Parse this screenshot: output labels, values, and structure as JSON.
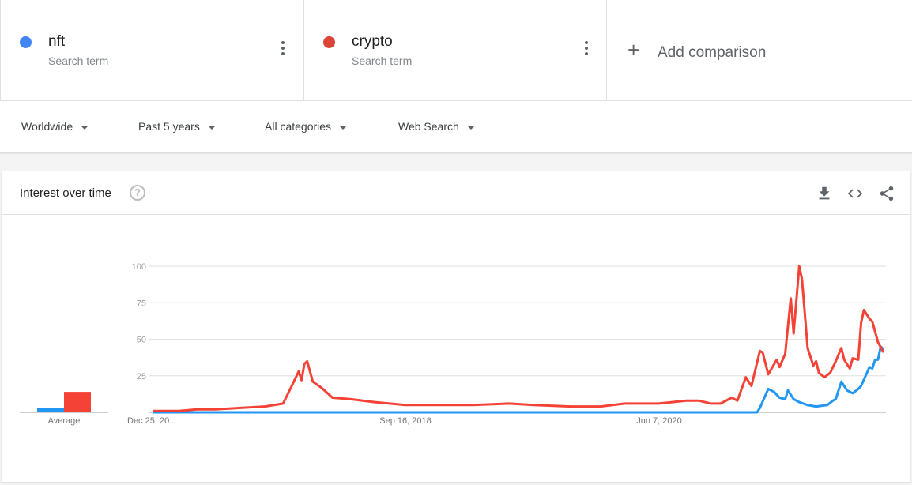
{
  "terms": [
    {
      "name": "nft",
      "sub": "Search term",
      "color": "#4285f4",
      "icon": "more-vert-icon"
    },
    {
      "name": "crypto",
      "sub": "Search term",
      "color": "#db4437",
      "icon": "more-vert-icon"
    }
  ],
  "add_comparison": {
    "icon": "plus-icon",
    "label": "Add comparison"
  },
  "filters": [
    "Worldwide",
    "Past 5 years",
    "All categories",
    "Web Search"
  ],
  "card": {
    "title": "Interest over time",
    "icons": [
      "help-icon",
      "download-icon",
      "embed-code-icon",
      "share-icon"
    ]
  },
  "chart_data": {
    "type": "line",
    "title": "Interest over time",
    "ylim": [
      0,
      100
    ],
    "yticks": [
      "25",
      "50",
      "75",
      "100"
    ],
    "xticklabels": [
      "Dec 25, 20...",
      "Sep 16, 2018",
      "Jun 7, 2020"
    ],
    "x_range": [
      "2016-12-25",
      "2021-12-19"
    ],
    "grid": true,
    "average": {
      "label": "Average",
      "values": [
        {
          "name": "nft",
          "value": 3
        },
        {
          "name": "crypto",
          "value": 14
        }
      ]
    },
    "series": [
      {
        "name": "nft",
        "color": "#2196f3",
        "points": [
          [
            "2016-12-25",
            0
          ],
          [
            "2021-02-07",
            0
          ],
          [
            "2021-02-14",
            3
          ],
          [
            "2021-03-07",
            16
          ],
          [
            "2021-03-21",
            14
          ],
          [
            "2021-04-04",
            10
          ],
          [
            "2021-04-18",
            9
          ],
          [
            "2021-04-25",
            15
          ],
          [
            "2021-05-09",
            9
          ],
          [
            "2021-05-23",
            7
          ],
          [
            "2021-06-13",
            5
          ],
          [
            "2021-07-04",
            4
          ],
          [
            "2021-08-01",
            5
          ],
          [
            "2021-08-15",
            8
          ],
          [
            "2021-08-22",
            9
          ],
          [
            "2021-09-05",
            21
          ],
          [
            "2021-09-19",
            15
          ],
          [
            "2021-10-03",
            13
          ],
          [
            "2021-10-17",
            16
          ],
          [
            "2021-10-24",
            18
          ],
          [
            "2021-11-14",
            31
          ],
          [
            "2021-11-21",
            30
          ],
          [
            "2021-11-28",
            36
          ],
          [
            "2021-12-05",
            36
          ],
          [
            "2021-12-12",
            45
          ],
          [
            "2021-12-19",
            43
          ]
        ]
      },
      {
        "name": "crypto",
        "color": "#f44336",
        "points": [
          [
            "2016-12-25",
            1
          ],
          [
            "2017-03-01",
            1
          ],
          [
            "2017-04-15",
            2
          ],
          [
            "2017-06-01",
            2
          ],
          [
            "2017-08-01",
            3
          ],
          [
            "2017-10-01",
            4
          ],
          [
            "2017-11-15",
            6
          ],
          [
            "2017-12-10",
            20
          ],
          [
            "2017-12-24",
            28
          ],
          [
            "2017-12-31",
            22
          ],
          [
            "2018-01-07",
            33
          ],
          [
            "2018-01-14",
            35
          ],
          [
            "2018-01-28",
            21
          ],
          [
            "2018-02-18",
            17
          ],
          [
            "2018-03-18",
            10
          ],
          [
            "2018-05-01",
            9
          ],
          [
            "2018-07-01",
            7
          ],
          [
            "2018-09-16",
            5
          ],
          [
            "2018-12-01",
            5
          ],
          [
            "2019-03-01",
            5
          ],
          [
            "2019-06-01",
            6
          ],
          [
            "2019-08-01",
            5
          ],
          [
            "2019-11-01",
            4
          ],
          [
            "2020-01-15",
            4
          ],
          [
            "2020-03-15",
            6
          ],
          [
            "2020-06-07",
            6
          ],
          [
            "2020-08-15",
            8
          ],
          [
            "2020-09-15",
            8
          ],
          [
            "2020-10-15",
            6
          ],
          [
            "2020-11-08",
            6
          ],
          [
            "2020-12-06",
            10
          ],
          [
            "2020-12-20",
            8
          ],
          [
            "2021-01-10",
            24
          ],
          [
            "2021-01-24",
            18
          ],
          [
            "2021-02-14",
            42
          ],
          [
            "2021-02-21",
            41
          ],
          [
            "2021-03-07",
            26
          ],
          [
            "2021-03-28",
            36
          ],
          [
            "2021-04-04",
            31
          ],
          [
            "2021-04-18",
            40
          ],
          [
            "2021-05-02",
            78
          ],
          [
            "2021-05-09",
            54
          ],
          [
            "2021-05-23",
            100
          ],
          [
            "2021-05-30",
            91
          ],
          [
            "2021-06-13",
            44
          ],
          [
            "2021-06-27",
            32
          ],
          [
            "2021-07-04",
            35
          ],
          [
            "2021-07-11",
            27
          ],
          [
            "2021-07-25",
            24
          ],
          [
            "2021-08-08",
            27
          ],
          [
            "2021-08-22",
            35
          ],
          [
            "2021-09-05",
            44
          ],
          [
            "2021-09-12",
            36
          ],
          [
            "2021-09-26",
            30
          ],
          [
            "2021-10-03",
            37
          ],
          [
            "2021-10-17",
            36
          ],
          [
            "2021-10-24",
            61
          ],
          [
            "2021-10-31",
            70
          ],
          [
            "2021-11-14",
            64
          ],
          [
            "2021-11-21",
            62
          ],
          [
            "2021-12-05",
            48
          ],
          [
            "2021-12-19",
            41
          ]
        ]
      }
    ]
  }
}
